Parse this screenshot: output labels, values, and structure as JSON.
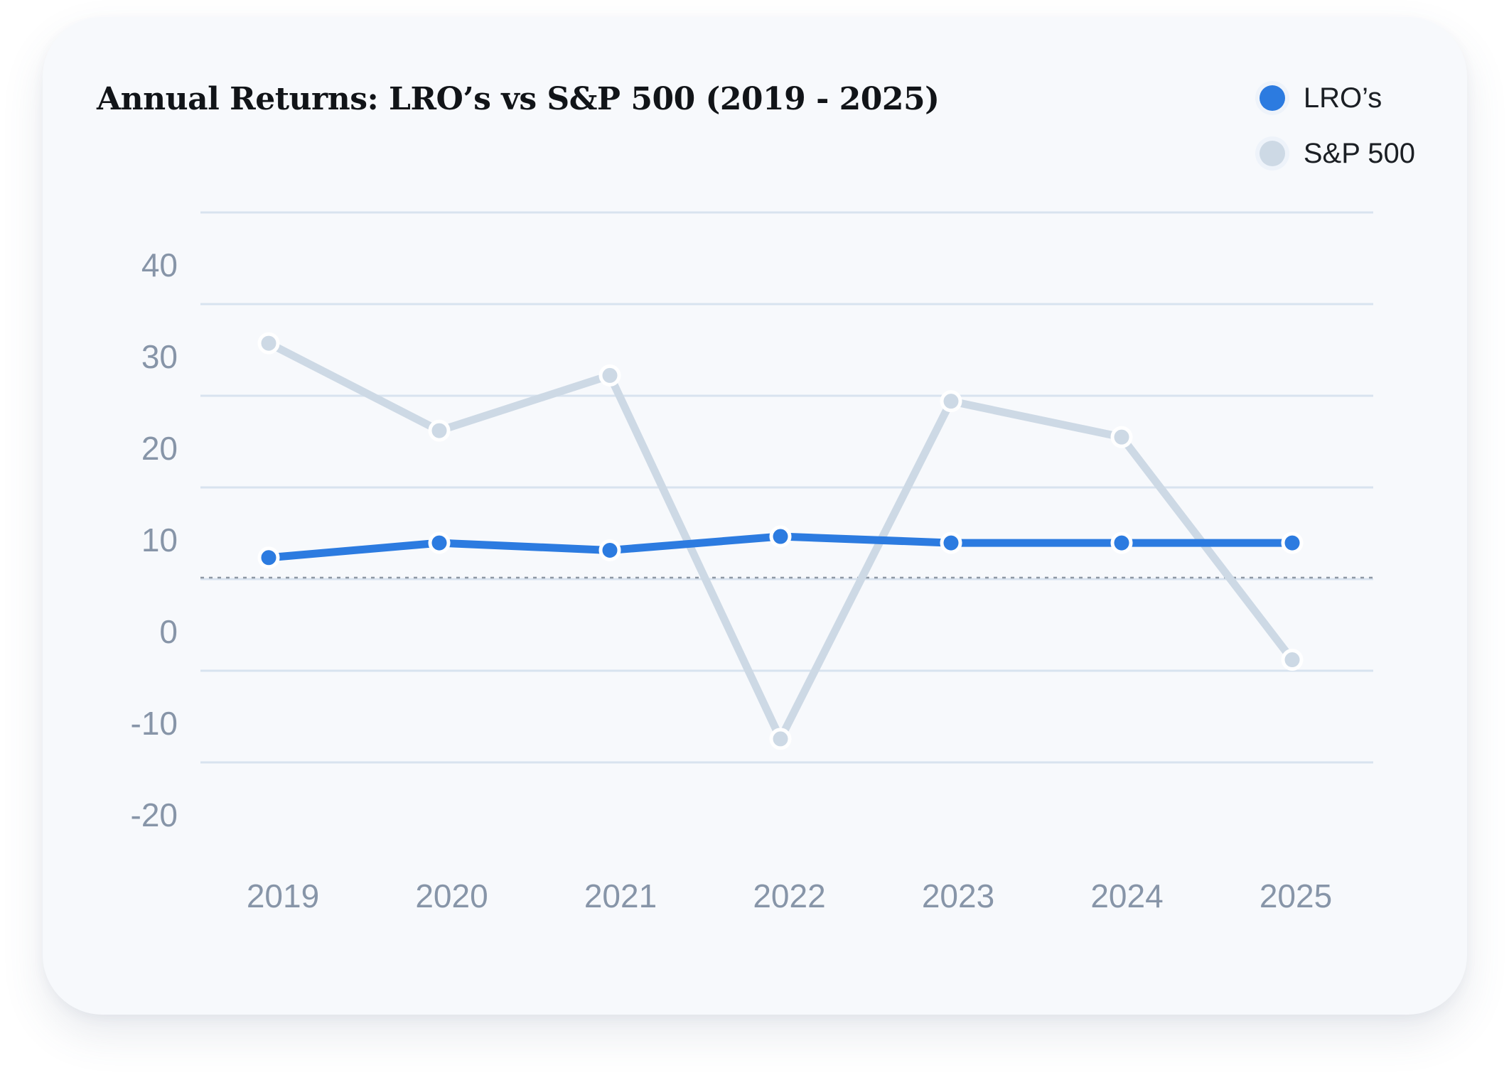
{
  "chart_data": {
    "type": "line",
    "title": "Annual Returns: LRO’s vs S&P 500 (2019 - 2025)",
    "xlabel": "",
    "ylabel": "",
    "categories": [
      "2019",
      "2020",
      "2021",
      "2022",
      "2023",
      "2024",
      "2025"
    ],
    "yticks": [
      "40",
      "30",
      "20",
      "10",
      "0",
      "-10",
      "-20"
    ],
    "series": [
      {
        "name": "LRO’s",
        "color": "#2c7be0",
        "values": [
          8.2,
          9.8,
          9.0,
          10.5,
          9.8,
          9.8,
          9.8
        ]
      },
      {
        "name": "S&P 500",
        "color": "#cdd9e5",
        "values": [
          31.5,
          22.0,
          28.0,
          -11.5,
          25.2,
          21.3,
          -2.9
        ]
      }
    ],
    "grid": true,
    "legend": "top-right",
    "reference_line": "dotted"
  }
}
